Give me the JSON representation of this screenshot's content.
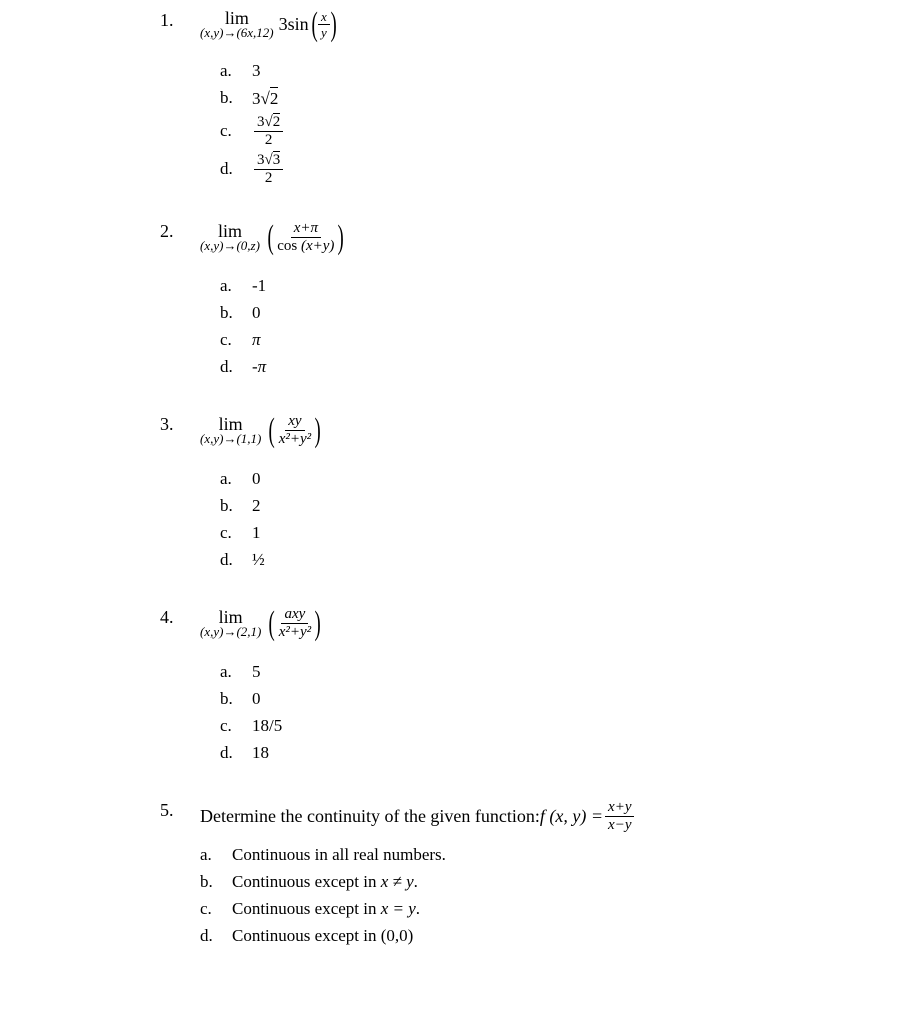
{
  "colors": {
    "background": "#ffffff",
    "text": "#000000"
  },
  "typography": {
    "font_family": "Times New Roman, serif",
    "base_fontsize": 18,
    "option_fontsize": 17,
    "subscript_fontsize": 13
  },
  "questions": [
    {
      "number": "1.",
      "lim_word": "lim",
      "lim_sub": "(x,y)→(6x,12)",
      "func_prefix": "3sin",
      "frac_num": "x",
      "frac_den": "y",
      "options": [
        {
          "letter": "a.",
          "value": "3"
        },
        {
          "letter": "b.",
          "value_prefix": "3",
          "sqrt_val": "2"
        },
        {
          "letter": "c.",
          "frac_num_prefix": "3",
          "frac_num_sqrt": "2",
          "frac_den": "2"
        },
        {
          "letter": "d.",
          "frac_num_prefix": "3",
          "frac_num_sqrt": "3",
          "frac_den": "2"
        }
      ]
    },
    {
      "number": "2.",
      "lim_word": "lim",
      "lim_sub": "(x,y)→(0,z)",
      "frac_num": "x+π",
      "frac_den_prefix": "cos ",
      "frac_den_suffix": "(x+y)",
      "options": [
        {
          "letter": "a.",
          "value": "-1"
        },
        {
          "letter": "b.",
          "value": "0"
        },
        {
          "letter": "c.",
          "value": "π"
        },
        {
          "letter": "d.",
          "value": "-π"
        }
      ]
    },
    {
      "number": "3.",
      "lim_word": "lim",
      "lim_sub": "(x,y)→(1,1)",
      "frac_num": "xy",
      "frac_den": "x²+y²",
      "options": [
        {
          "letter": "a.",
          "value": "0"
        },
        {
          "letter": "b.",
          "value": "2"
        },
        {
          "letter": "c.",
          "value": "1"
        },
        {
          "letter": "d.",
          "value": "½"
        }
      ]
    },
    {
      "number": "4.",
      "lim_word": "lim",
      "lim_sub": "(x,y)→(2,1)",
      "frac_num": "axy",
      "frac_den": "x²+y²",
      "options": [
        {
          "letter": "a.",
          "value": "5"
        },
        {
          "letter": "b.",
          "value": "0"
        },
        {
          "letter": "c.",
          "value": "18/5"
        },
        {
          "letter": "d.",
          "value": "18"
        }
      ]
    },
    {
      "number": "5.",
      "text": "Determine the continuity of the given function: ",
      "func_notation": "f (x, y) = ",
      "frac_num": "x+y",
      "frac_den": "x−y",
      "options": [
        {
          "letter": "a.",
          "value": "Continuous in all real numbers."
        },
        {
          "letter": "b.",
          "value_prefix": "Continuous except in ",
          "value_italic": "x ≠ y",
          "value_suffix": "."
        },
        {
          "letter": "c.",
          "value_prefix": "Continuous except in ",
          "value_italic": "x = y",
          "value_suffix": "."
        },
        {
          "letter": "d.",
          "value": "Continuous except in (0,0)"
        }
      ]
    }
  ]
}
